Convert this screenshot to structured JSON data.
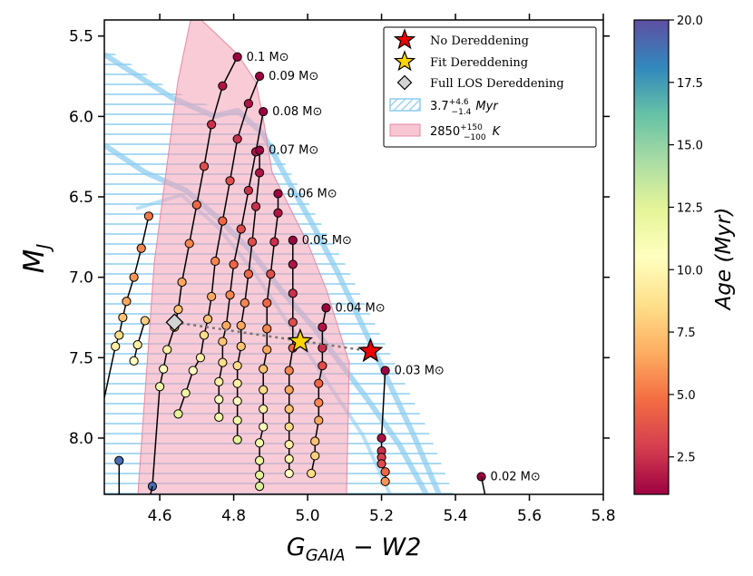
{
  "chart_data": {
    "type": "scatter",
    "xlabel": "G_GAIA − W2",
    "xlabel_main": "G",
    "xlabel_sub": "GAIA",
    "xlabel_rest": " − W2",
    "ylabel_main": "M",
    "ylabel_sub": "J",
    "xlim": [
      4.45,
      5.8
    ],
    "ylim": [
      8.35,
      5.4
    ],
    "x_ticks": [
      4.6,
      4.8,
      5.0,
      5.2,
      5.4,
      5.6,
      5.8
    ],
    "x_tick_labels": [
      "4.6",
      "4.8",
      "5.0",
      "5.2",
      "5.4",
      "5.6",
      "5.8"
    ],
    "y_ticks": [
      5.5,
      6.0,
      6.5,
      7.0,
      7.5,
      8.0
    ],
    "y_tick_labels": [
      "5.5",
      "6.0",
      "6.5",
      "7.0",
      "7.5",
      "8.0"
    ],
    "colorbar": {
      "label": "Age (Myr)",
      "range": [
        1,
        20
      ],
      "ticks": [
        2.5,
        5.0,
        7.5,
        10.0,
        12.5,
        15.0,
        17.5,
        20.0
      ],
      "tick_labels": [
        "2.5",
        "5.0",
        "7.5",
        "10.0",
        "12.5",
        "15.0",
        "17.5",
        "20.0"
      ]
    },
    "legend": [
      {
        "marker": "star-red",
        "label": "No Dereddening"
      },
      {
        "marker": "star-gold",
        "label": "Fit Dereddening"
      },
      {
        "marker": "diamond-grey",
        "label": "Full LOS Dereddening"
      },
      {
        "marker": "hatch-blue",
        "label_main": "3.7",
        "label_sup": "+4.6",
        "label_sub": "−1.4",
        "label_unit": "Myr"
      },
      {
        "marker": "fill-pink",
        "label_main": "2850",
        "label_sup": "+150",
        "label_sub": "−100",
        "label_unit": "K"
      }
    ],
    "tracks": [
      {
        "mass": "0.1",
        "label": "0.1 M⊙",
        "points": [
          {
            "x": 4.81,
            "y": 5.63,
            "age": 1.0
          },
          {
            "x": 4.77,
            "y": 5.81,
            "age": 1.6
          },
          {
            "x": 4.74,
            "y": 6.05,
            "age": 2.5
          },
          {
            "x": 4.72,
            "y": 6.31,
            "age": 3.5
          },
          {
            "x": 4.7,
            "y": 6.55,
            "age": 4.5
          },
          {
            "x": 4.68,
            "y": 6.79,
            "age": 5.5
          },
          {
            "x": 4.66,
            "y": 7.03,
            "age": 6.5
          },
          {
            "x": 4.65,
            "y": 7.2,
            "age": 7.5
          },
          {
            "x": 4.64,
            "y": 7.31,
            "age": 8.5
          },
          {
            "x": 4.62,
            "y": 7.45,
            "age": 9.5
          },
          {
            "x": 4.61,
            "y": 7.57,
            "age": 10.5
          },
          {
            "x": 4.6,
            "y": 7.68,
            "age": 11.5
          },
          {
            "x": 4.58,
            "y": 8.3,
            "age": 19.0
          }
        ]
      },
      {
        "mass": "0.09",
        "label": "0.09 M⊙",
        "points": [
          {
            "x": 4.87,
            "y": 5.75,
            "age": 1.0
          },
          {
            "x": 4.84,
            "y": 5.92,
            "age": 1.6
          },
          {
            "x": 4.81,
            "y": 6.14,
            "age": 2.5
          },
          {
            "x": 4.79,
            "y": 6.4,
            "age": 3.5
          },
          {
            "x": 4.77,
            "y": 6.65,
            "age": 4.5
          },
          {
            "x": 4.75,
            "y": 6.9,
            "age": 5.5
          },
          {
            "x": 4.74,
            "y": 7.12,
            "age": 6.5
          },
          {
            "x": 4.73,
            "y": 7.26,
            "age": 7.5
          },
          {
            "x": 4.72,
            "y": 7.36,
            "age": 8.5
          },
          {
            "x": 4.71,
            "y": 7.5,
            "age": 9.5
          },
          {
            "x": 4.69,
            "y": 7.58,
            "age": 10.5
          },
          {
            "x": 4.67,
            "y": 7.72,
            "age": 11.5
          },
          {
            "x": 4.65,
            "y": 7.85,
            "age": 12.5
          }
        ]
      },
      {
        "mass": "0.08",
        "label": "0.08 M⊙",
        "points": [
          {
            "x": 4.88,
            "y": 5.97,
            "age": 1.0
          },
          {
            "x": 4.86,
            "y": 6.22,
            "age": 1.6
          },
          {
            "x": 4.84,
            "y": 6.46,
            "age": 2.5
          },
          {
            "x": 4.82,
            "y": 6.7,
            "age": 3.5
          },
          {
            "x": 4.8,
            "y": 6.92,
            "age": 4.5
          },
          {
            "x": 4.79,
            "y": 7.11,
            "age": 5.5
          },
          {
            "x": 4.78,
            "y": 7.3,
            "age": 6.5
          },
          {
            "x": 4.77,
            "y": 7.4,
            "age": 7.5
          },
          {
            "x": 4.77,
            "y": 7.53,
            "age": 8.5
          },
          {
            "x": 4.76,
            "y": 7.65,
            "age": 9.5
          },
          {
            "x": 4.76,
            "y": 7.76,
            "age": 10.5
          },
          {
            "x": 4.76,
            "y": 7.87,
            "age": 11.5
          }
        ]
      },
      {
        "mass": "0.07",
        "label": "0.07 M⊙",
        "points": [
          {
            "x": 4.87,
            "y": 6.21,
            "age": 1.0
          },
          {
            "x": 4.87,
            "y": 6.35,
            "age": 1.6
          },
          {
            "x": 4.86,
            "y": 6.56,
            "age": 2.5
          },
          {
            "x": 4.85,
            "y": 6.78,
            "age": 3.5
          },
          {
            "x": 4.84,
            "y": 6.98,
            "age": 4.5
          },
          {
            "x": 4.83,
            "y": 7.16,
            "age": 5.5
          },
          {
            "x": 4.82,
            "y": 7.3,
            "age": 6.5
          },
          {
            "x": 4.82,
            "y": 7.43,
            "age": 7.5
          },
          {
            "x": 4.81,
            "y": 7.55,
            "age": 8.5
          },
          {
            "x": 4.81,
            "y": 7.66,
            "age": 9.5
          },
          {
            "x": 4.81,
            "y": 7.77,
            "age": 10.5
          },
          {
            "x": 4.81,
            "y": 7.89,
            "age": 11.5
          },
          {
            "x": 4.81,
            "y": 8.01,
            "age": 12.5
          }
        ]
      },
      {
        "mass": "0.06",
        "label": "0.06 M⊙",
        "points": [
          {
            "x": 4.92,
            "y": 6.48,
            "age": 1.0
          },
          {
            "x": 4.92,
            "y": 6.6,
            "age": 1.6
          },
          {
            "x": 4.91,
            "y": 6.78,
            "age": 2.5
          },
          {
            "x": 4.9,
            "y": 6.98,
            "age": 3.5
          },
          {
            "x": 4.89,
            "y": 7.16,
            "age": 4.5
          },
          {
            "x": 4.89,
            "y": 7.32,
            "age": 5.5
          },
          {
            "x": 4.89,
            "y": 7.45,
            "age": 6.5
          },
          {
            "x": 4.88,
            "y": 7.57,
            "age": 7.5
          },
          {
            "x": 4.88,
            "y": 7.7,
            "age": 8.5
          },
          {
            "x": 4.88,
            "y": 7.82,
            "age": 9.5
          },
          {
            "x": 4.88,
            "y": 7.93,
            "age": 10.5
          },
          {
            "x": 4.87,
            "y": 8.03,
            "age": 11.5
          },
          {
            "x": 4.87,
            "y": 8.14,
            "age": 12.0
          },
          {
            "x": 4.87,
            "y": 8.23,
            "age": 12.5
          },
          {
            "x": 4.87,
            "y": 8.3,
            "age": 12.8
          }
        ]
      },
      {
        "mass": "0.05",
        "label": "0.05 M⊙",
        "points": [
          {
            "x": 4.96,
            "y": 6.77,
            "age": 1.0
          },
          {
            "x": 4.96,
            "y": 6.92,
            "age": 1.6
          },
          {
            "x": 4.96,
            "y": 7.1,
            "age": 2.5
          },
          {
            "x": 4.96,
            "y": 7.28,
            "age": 3.5
          },
          {
            "x": 4.96,
            "y": 7.44,
            "age": 4.5
          },
          {
            "x": 4.95,
            "y": 7.58,
            "age": 5.5
          },
          {
            "x": 4.95,
            "y": 7.7,
            "age": 6.5
          },
          {
            "x": 4.95,
            "y": 7.82,
            "age": 7.5
          },
          {
            "x": 4.95,
            "y": 7.93,
            "age": 8.5
          },
          {
            "x": 4.95,
            "y": 8.04,
            "age": 9.5
          },
          {
            "x": 4.95,
            "y": 8.13,
            "age": 10.0
          },
          {
            "x": 4.95,
            "y": 8.22,
            "age": 10.5
          }
        ]
      },
      {
        "mass": "0.04",
        "label": "0.04 M⊙",
        "points": [
          {
            "x": 5.05,
            "y": 7.19,
            "age": 1.0
          },
          {
            "x": 5.04,
            "y": 7.31,
            "age": 1.6
          },
          {
            "x": 5.04,
            "y": 7.44,
            "age": 2.5
          },
          {
            "x": 5.04,
            "y": 7.55,
            "age": 3.5
          },
          {
            "x": 5.03,
            "y": 7.66,
            "age": 4.5
          },
          {
            "x": 5.03,
            "y": 7.78,
            "age": 5.5
          },
          {
            "x": 5.03,
            "y": 7.89,
            "age": 6.5
          },
          {
            "x": 5.02,
            "y": 8.02,
            "age": 7.5
          },
          {
            "x": 5.02,
            "y": 8.11,
            "age": 8.0
          },
          {
            "x": 5.01,
            "y": 8.22,
            "age": 8.5
          }
        ]
      },
      {
        "mass": "0.03",
        "label": "0.03 M⊙",
        "points": [
          {
            "x": 5.21,
            "y": 7.58,
            "age": 1.0
          },
          {
            "x": 5.2,
            "y": 8.0,
            "age": 1.5
          },
          {
            "x": 5.2,
            "y": 8.08,
            "age": 2.5
          },
          {
            "x": 5.2,
            "y": 8.12,
            "age": 3.0
          },
          {
            "x": 5.2,
            "y": 8.16,
            "age": 3.5
          },
          {
            "x": 5.21,
            "y": 8.21,
            "age": 4.5
          },
          {
            "x": 5.21,
            "y": 8.27,
            "age": 6.0
          }
        ]
      },
      {
        "mass": "0.02",
        "label": "0.02 M⊙",
        "points": [
          {
            "x": 5.47,
            "y": 8.24,
            "age": 1.0
          }
        ]
      }
    ],
    "left_tracks": [
      {
        "points": [
          {
            "x": 4.57,
            "y": 6.62,
            "age": 5.0
          },
          {
            "x": 4.55,
            "y": 6.82,
            "age": 5.5
          },
          {
            "x": 4.53,
            "y": 7.0,
            "age": 6.0
          },
          {
            "x": 4.51,
            "y": 7.15,
            "age": 6.5
          },
          {
            "x": 4.5,
            "y": 7.25,
            "age": 7.5
          },
          {
            "x": 4.49,
            "y": 7.36,
            "age": 8.5
          },
          {
            "x": 4.48,
            "y": 7.43,
            "age": 9.5
          }
        ]
      },
      {
        "points": [
          {
            "x": 4.56,
            "y": 7.27,
            "age": 8.0
          },
          {
            "x": 4.54,
            "y": 7.42,
            "age": 9.5
          },
          {
            "x": 4.53,
            "y": 7.52,
            "age": 10.5
          }
        ]
      },
      {
        "points": [
          {
            "x": 4.49,
            "y": 8.14,
            "age": 19.0
          }
        ]
      }
    ],
    "dereddening": [
      {
        "name": "No Dereddening",
        "x": 5.17,
        "y": 7.46
      },
      {
        "name": "Fit Dereddening",
        "x": 4.98,
        "y": 7.4
      },
      {
        "name": "Full LOS Dereddening",
        "x": 4.64,
        "y": 7.28
      }
    ]
  }
}
